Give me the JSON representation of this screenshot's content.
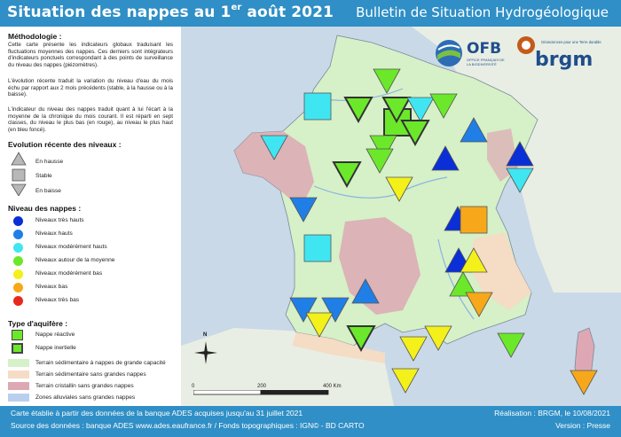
{
  "header": {
    "title_main": "Situation des nappes au 1",
    "title_sup": "er",
    "title_end": " août 2021",
    "subtitle": "Bulletin de Situation Hydrogéologique"
  },
  "methodology": {
    "title": "Méthodologie :",
    "p1": "Cette carte présente les indicateurs globaux traduisant les fluctuations moyennes des nappes. Ces derniers sont intégrateurs d'indicateurs ponctuels correspondant à des points de surveillance du niveau des nappes (piézomètres).",
    "p2": "L'évolution récente traduit la variation du niveau d'eau du mois échu par rapport aux 2 mois précédents (stable, à la hausse ou à la baisse).",
    "p3": "L'indicateur du niveau des nappes traduit quant à lui l'écart à la moyenne de la chronique du mois courant. Il est réparti en sept classes, du niveau le plus bas (en rouge), au niveau le plus haut (en bleu foncé)."
  },
  "evolution_legend": {
    "title": "Evolution récente des niveaux :",
    "items": [
      {
        "label": "En hausse",
        "icon": "triangle-up-icon"
      },
      {
        "label": "Stable",
        "icon": "square-icon"
      },
      {
        "label": "En baisse",
        "icon": "triangle-down-icon"
      }
    ]
  },
  "level_legend": {
    "title": "Niveau des nappes :",
    "items": [
      {
        "label": "Niveaux très hauts",
        "color": "#0a2fd6"
      },
      {
        "label": "Niveaux hauts",
        "color": "#1f7fe6"
      },
      {
        "label": "Niveaux modérément hauts",
        "color": "#3fe6f2"
      },
      {
        "label": "Niveaux autour de la moyenne",
        "color": "#6be82a"
      },
      {
        "label": "Niveaux modérément bas",
        "color": "#f4f01a"
      },
      {
        "label": "Niveaux bas",
        "color": "#f7a81a"
      },
      {
        "label": "Niveaux très bas",
        "color": "#e8281e"
      }
    ]
  },
  "aquifer_legend": {
    "title": "Type d'aquifère :",
    "items": [
      {
        "label": "Nappe réactive",
        "color": "#6be82a"
      },
      {
        "label": "Nappe inertielle",
        "color": "#6be82a"
      }
    ],
    "terrains": [
      {
        "label": "Terrain sédimentaire à nappes de grande capacité",
        "color": "#d6f0c8"
      },
      {
        "label": "Terrain sédimentaire sans grandes nappes",
        "color": "#f5dcc4"
      },
      {
        "label": "Terrain cristallin sans grandes nappes",
        "color": "#dda8b4"
      },
      {
        "label": "Zones alluviales sans grandes nappes",
        "color": "#b8d0ee"
      }
    ]
  },
  "logos": {
    "ofb": "OFB",
    "ofb_sub": "OFFICE FRANÇAIS DE LA BIODIVERSITÉ",
    "brgm": "brgm",
    "brgm_tag": "Géosciences pour une Terre durable"
  },
  "map": {
    "north": "N",
    "scale_labels": [
      "0",
      "200",
      "400 Km"
    ]
  },
  "footer": {
    "left1": "Carte établie à partir des données de la banque ADES acquises jusqu'au 31 juillet 2021",
    "left2": "Source des données : banque ADES www.ades.eaufrance.fr / Fonds topographiques : IGN© - BD CARTO",
    "right1": "Réalisation : BRGM, le 10/08/2021",
    "right2": "Version : Presse"
  }
}
